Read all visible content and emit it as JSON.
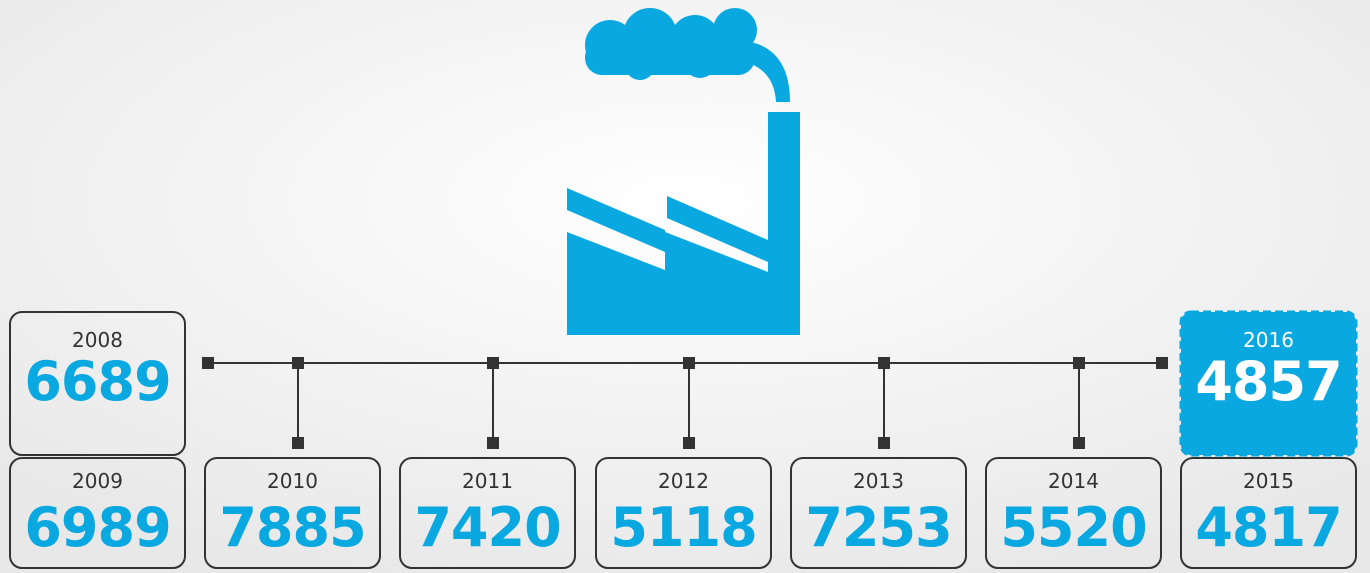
{
  "top": [
    {
      "year": "2008",
      "value": "6689"
    },
    {
      "year": "2016",
      "value": "4857"
    }
  ],
  "bottom": [
    {
      "year": "2009",
      "value": "6989"
    },
    {
      "year": "2010",
      "value": "7885"
    },
    {
      "year": "2011",
      "value": "7420"
    },
    {
      "year": "2012",
      "value": "5118"
    },
    {
      "year": "2013",
      "value": "7253"
    },
    {
      "year": "2014",
      "value": "5520"
    },
    {
      "year": "2015",
      "value": "4817"
    }
  ]
}
